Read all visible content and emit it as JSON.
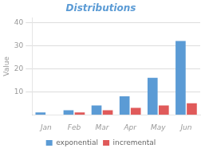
{
  "chart_data": {
    "type": "bar",
    "title": "Distributions",
    "ylabel": "Value",
    "categories": [
      "Jan",
      "Feb",
      "Mar",
      "Apr",
      "May",
      "Jun"
    ],
    "series": [
      {
        "name": "exponential",
        "color": "#5b9bd5",
        "values": [
          1,
          2,
          4,
          8,
          16,
          32
        ]
      },
      {
        "name": "incremental",
        "color": "#e05a5a",
        "values": [
          0,
          1,
          2,
          3,
          4,
          5
        ]
      }
    ],
    "ylim": [
      0,
      42
    ],
    "yticks": [
      10,
      20,
      30,
      40
    ],
    "grid": true,
    "legend": "bottom"
  }
}
